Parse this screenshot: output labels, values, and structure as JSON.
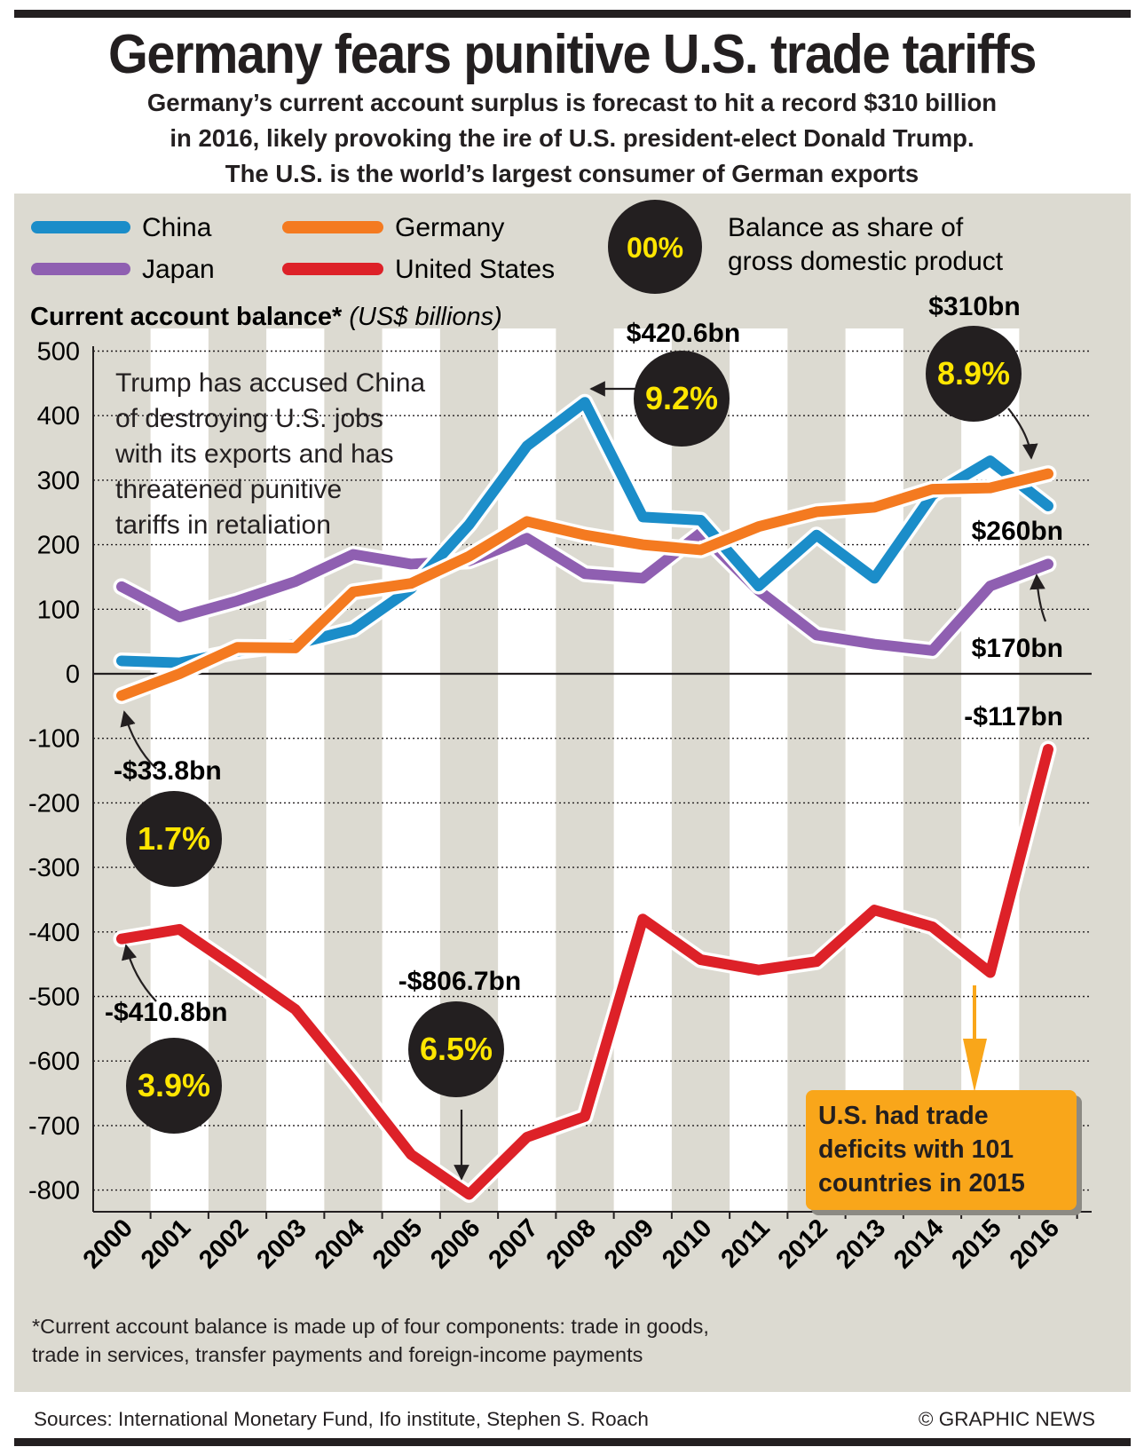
{
  "header": {
    "title": "Germany fears punitive U.S. trade tariffs",
    "subtitle_lines": [
      "Germany’s current account surplus is forecast to hit a record $310 billion",
      "in 2016, likely provoking the ire of U.S. president-elect Donald Trump.",
      "The U.S. is the world’s largest consumer of German exports"
    ]
  },
  "legend": {
    "china": "China",
    "germany": "Germany",
    "japan": "Japan",
    "us": "United States",
    "gdp_sample": "00%",
    "gdp_desc_line1": "Balance as share of",
    "gdp_desc_line2": "gross domestic product"
  },
  "chart_data": {
    "type": "line",
    "ylabel": "Current account balance*",
    "ylabel_units": "(US$ billions)",
    "ylim": [
      -850,
      520
    ],
    "yticks": [
      500,
      400,
      300,
      200,
      100,
      0,
      -100,
      -200,
      -300,
      -400,
      -500,
      -600,
      -700,
      -800
    ],
    "x": [
      "2000",
      "2001",
      "2002",
      "2003",
      "2004",
      "2005",
      "2006",
      "2007",
      "2008",
      "2009",
      "2010",
      "2011",
      "2012",
      "2013",
      "2014",
      "2015",
      "2016"
    ],
    "grid": "horizontal dotted",
    "series": [
      {
        "name": "China",
        "color": "#1b8dc9",
        "values": [
          20,
          17,
          35,
          46,
          69,
          132,
          231,
          353,
          420.6,
          243,
          238,
          136,
          215,
          148,
          277,
          330,
          260
        ]
      },
      {
        "name": "Germany",
        "color": "#f47a20",
        "values": [
          -33.8,
          0,
          41,
          40,
          127,
          140,
          182,
          236,
          215,
          200,
          192,
          228,
          251,
          258,
          286,
          288,
          310
        ]
      },
      {
        "name": "Japan",
        "color": "#8f5fb1",
        "values": [
          135,
          88,
          113,
          143,
          185,
          170,
          175,
          210,
          155,
          148,
          218,
          129,
          60,
          46,
          36,
          136,
          170
        ]
      },
      {
        "name": "United States",
        "color": "#dd2128",
        "values": [
          -410.8,
          -396,
          -457,
          -520,
          -630,
          -745,
          -806.7,
          -718,
          -686,
          -380,
          -443,
          -459,
          -446,
          -366,
          -392,
          -463,
          -117
        ]
      }
    ],
    "annotations": [
      {
        "label": "$420.6bn",
        "gdp": "9.2%"
      },
      {
        "label": "$310bn",
        "gdp": "8.9%"
      },
      {
        "label": "$260bn"
      },
      {
        "label": "$170bn"
      },
      {
        "label": "-$117bn"
      },
      {
        "label": "-$33.8bn",
        "gdp": "1.7%"
      },
      {
        "label": "-$410.8bn",
        "gdp": "3.9%"
      },
      {
        "label": "-$806.7bn",
        "gdp": "6.5%"
      }
    ],
    "colors": {
      "panel": "#dcdad1",
      "band": "#ffffff",
      "bubble": "#231f20",
      "bubble_text": "#ffe600",
      "callout": "#f9a61a"
    }
  },
  "text_annotation_lines": [
    "Trump has accused China",
    "of destroying U.S. jobs",
    "with its exports and has",
    "threatened punitive",
    "tariffs in retaliation"
  ],
  "callout_lines": [
    "U.S. had trade",
    "deficits with 101",
    "countries in 2015"
  ],
  "footnote_lines": [
    "*Current account balance is made up of four components: trade in goods,",
    "trade in services, transfer payments and foreign-income payments"
  ],
  "sources": "Sources: International Monetary Fund, Ifo institute, Stephen S. Roach",
  "credit": "© GRAPHIC NEWS"
}
